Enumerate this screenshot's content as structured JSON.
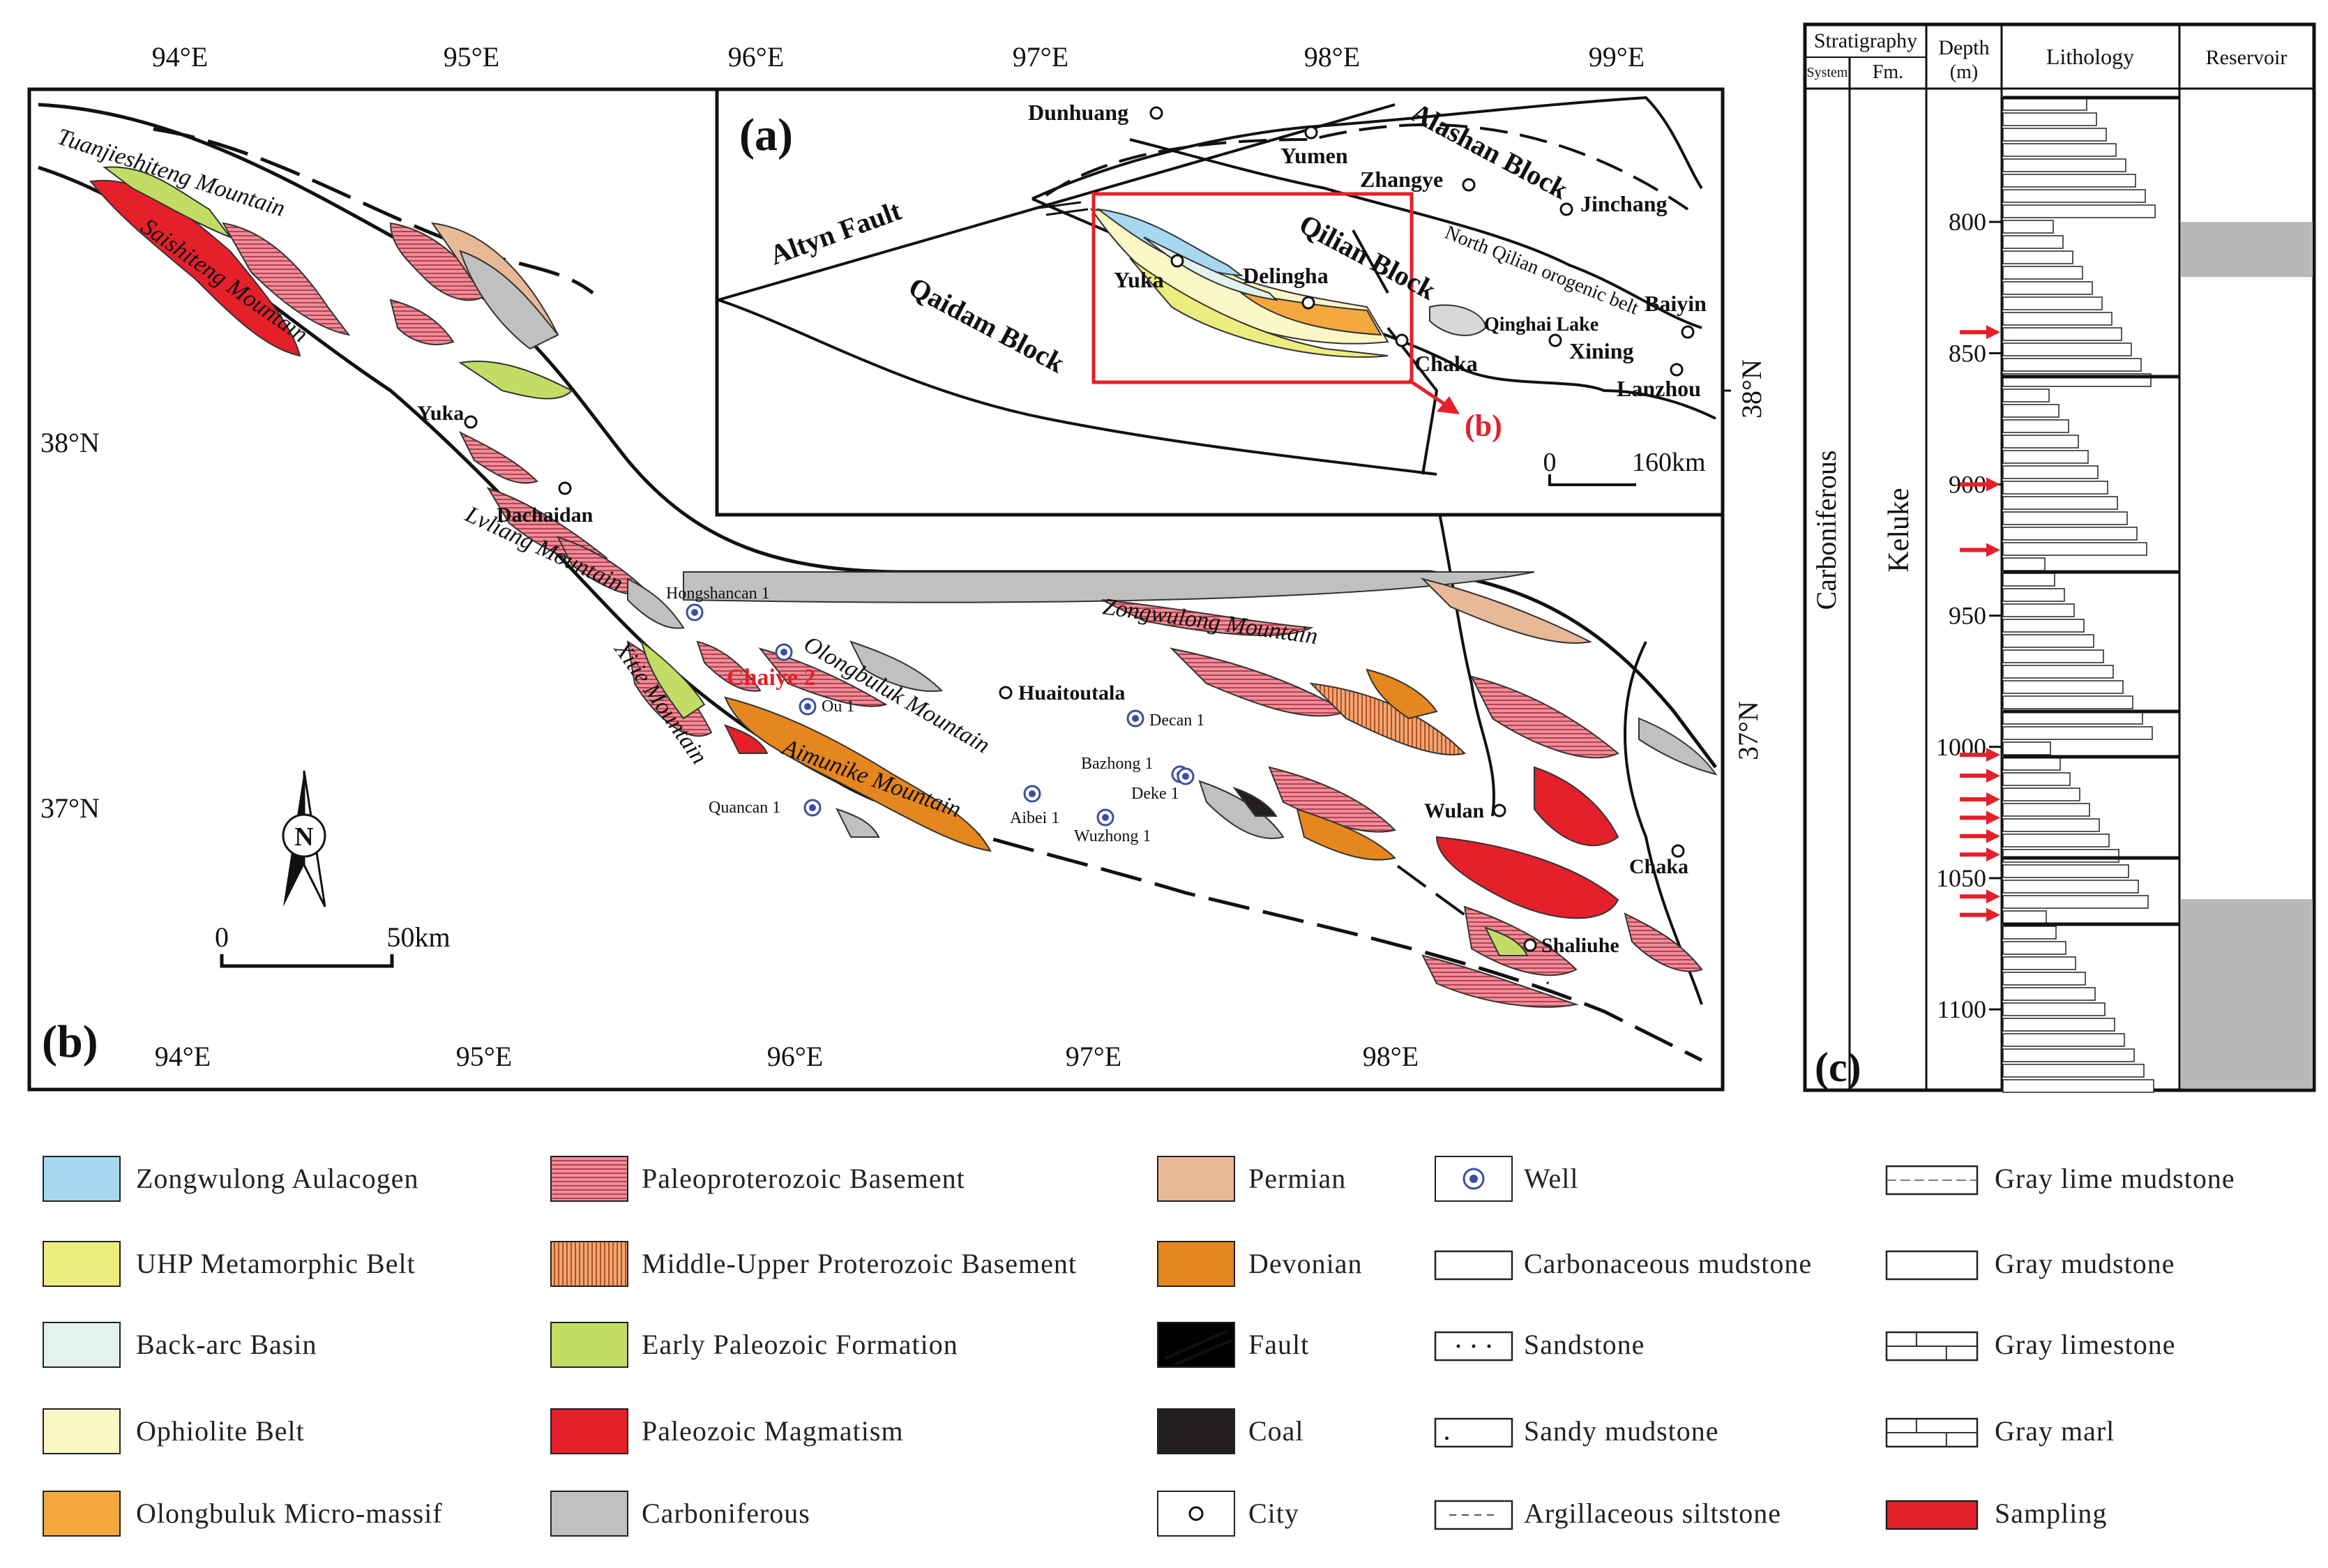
{
  "map_b": {
    "panel_label": "(b)",
    "top_lon_ticks": [
      "94°E",
      "95°E",
      "96°E",
      "97°E",
      "98°E",
      "99°E"
    ],
    "bottom_lon_ticks": [
      "94°E",
      "95°E",
      "96°E",
      "97°E",
      "98°E"
    ],
    "left_lat_ticks": [
      "38°N",
      "37°N"
    ],
    "right_lat_tick": "37°N",
    "north_arrow": "N",
    "scale": {
      "start": "0",
      "end": "50km"
    },
    "mountains": [
      "Tuanjieshiteng Mountain",
      "Saishiteng Mountain",
      "Lvliang Mountain",
      "Xitie Mountain",
      "Olongbuluk Mountain",
      "Aimunike Mountain",
      "Zongwulong Mountain"
    ],
    "cities": [
      "Yuka",
      "Dachaidan",
      "Huaitoutala",
      "Wulan",
      "Chaka",
      "Shaliuhe"
    ],
    "wells": [
      "Hongshancan 1",
      "Ou 1",
      "Decan 1",
      "Bazhong 1",
      "Deke 1",
      "Quancan 1",
      "Aibei 1",
      "Wuzhong 1"
    ],
    "highlight_well": "Chaiye 2"
  },
  "map_a": {
    "panel_label": "(a)",
    "blocks": [
      "Alashan Block",
      "Qilian Block",
      "Qaidam Block",
      "North Qilian orogenic belt"
    ],
    "faults": [
      "Altyn Fault"
    ],
    "cities": [
      "Dunhuang",
      "Yumen",
      "Zhangye",
      "Jinchang",
      "Delingha",
      "Yuka",
      "Chaka",
      "Qinghai Lake",
      "Xining",
      "Baiyin",
      "Lanzhou"
    ],
    "inset_pointer": "(b)",
    "right_lat_tick": "38°N",
    "scale": {
      "start": "0",
      "end": "160km"
    }
  },
  "column_c": {
    "panel_label": "(c)",
    "headers": {
      "stratigraphy": "Stratigraphy",
      "system": "System",
      "fm": "Fm.",
      "depth": "Depth",
      "depth_unit": "(m)",
      "lithology": "Lithology",
      "reservoir": "Reservoir"
    },
    "system_value": "Carboniferous",
    "formation_value": "Keluke",
    "depth_ticks": [
      "800",
      "850",
      "900",
      "950",
      "1000",
      "1050",
      "1100"
    ],
    "depth_tick_values": [
      800,
      850,
      900,
      950,
      1000,
      1050,
      1100
    ],
    "depth_range": [
      750,
      1130
    ],
    "reservoir_intervals": [
      [
        800,
        821
      ],
      [
        1058,
        1130
      ]
    ],
    "sampling_depths": [
      842,
      900,
      925,
      1003,
      1011,
      1020,
      1027,
      1034,
      1041,
      1057,
      1064
    ]
  },
  "legend": [
    {
      "label": "Zongwulong Aulacogen",
      "color": "#a6d8f0",
      "pattern": "fill"
    },
    {
      "label": "UHP Metamorphic Belt",
      "color": "#eded7f",
      "pattern": "fill"
    },
    {
      "label": "Back-arc Basin",
      "color": "#e2f2ec",
      "pattern": "fill"
    },
    {
      "label": "Ophiolite Belt",
      "color": "#fcf7c6",
      "pattern": "fill"
    },
    {
      "label": "Olongbuluk Micro-massif",
      "color": "#f4a93e",
      "pattern": "fill"
    },
    {
      "label": "Paleoproterozoic Basement",
      "color": "#ec8f9a",
      "pattern": "hstripe"
    },
    {
      "label": "Middle-Upper Proterozoic Basement",
      "color": "#f0a677",
      "pattern": "vstripe"
    },
    {
      "label": "Early Paleozoic Formation",
      "color": "#c3dc66",
      "pattern": "fill"
    },
    {
      "label": "Paleozoic Magmatism",
      "color": "#e5202a",
      "pattern": "fill"
    },
    {
      "label": "Carboniferous",
      "color": "#c0c0c0",
      "pattern": "fill"
    },
    {
      "label": "Permian",
      "color": "#e8b897",
      "pattern": "fill"
    },
    {
      "label": "Devonian",
      "color": "#e6861e",
      "pattern": "fill"
    },
    {
      "label": "Fault",
      "color": "#000000",
      "pattern": "fault"
    },
    {
      "label": "Coal",
      "color": "#231f20",
      "pattern": "fill"
    },
    {
      "label": "City",
      "color": "#ffffff",
      "pattern": "city"
    },
    {
      "label": "Well",
      "color": "#3a4fa0",
      "pattern": "well"
    },
    {
      "label": "Carbonaceous mudstone",
      "color": "#ffffff",
      "pattern": "blank"
    },
    {
      "label": "Sandstone",
      "color": "#ffffff",
      "pattern": "dots"
    },
    {
      "label": "Sandy mudstone",
      "color": "#ffffff",
      "pattern": "dot"
    },
    {
      "label": "Argillaceous siltstone",
      "color": "#ffffff",
      "pattern": "dash"
    },
    {
      "label": "Gray lime mudstone",
      "color": "#ffffff",
      "pattern": "limemud"
    },
    {
      "label": "Gray mudstone",
      "color": "#ffffff",
      "pattern": "blank"
    },
    {
      "label": "Gray limestone",
      "color": "#ffffff",
      "pattern": "brick"
    },
    {
      "label": "Gray marl",
      "color": "#ffffff",
      "pattern": "brick"
    },
    {
      "label": "Sampling",
      "color": "#e5202a",
      "pattern": "arrow"
    }
  ]
}
